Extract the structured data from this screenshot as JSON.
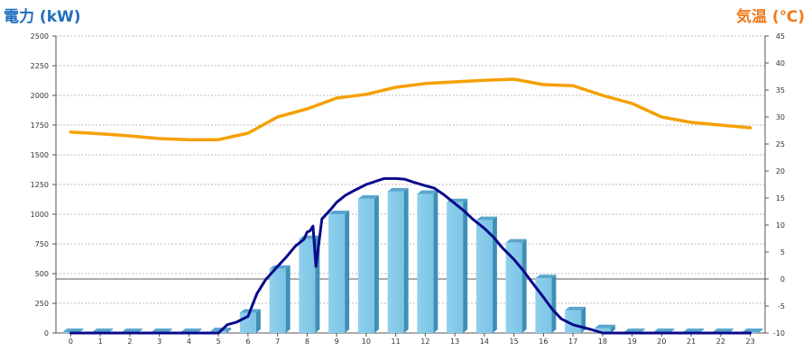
{
  "chart_data": {
    "type": "bar",
    "title": "",
    "ylabel_left": "電力 (kW)",
    "ylabel_right": "気温 (℃)",
    "categories": [
      "0",
      "1",
      "2",
      "3",
      "4",
      "5",
      "6",
      "7",
      "8",
      "9",
      "10",
      "11",
      "12",
      "13",
      "14",
      "15",
      "16",
      "17",
      "18",
      "19",
      "20",
      "21",
      "22",
      "23"
    ],
    "ylim_left": [
      0,
      2500
    ],
    "yticks_left": [
      0,
      250,
      500,
      750,
      1000,
      1250,
      1500,
      1750,
      2000,
      2250,
      2500
    ],
    "ylim_right": [
      -10,
      45
    ],
    "yticks_right": [
      -10,
      -5,
      0,
      5,
      10,
      15,
      20,
      25,
      30,
      35,
      40,
      45
    ],
    "grid": true,
    "series": [
      {
        "kind": "bar",
        "axis": "left",
        "values": [
          8,
          8,
          8,
          8,
          8,
          15,
          170,
          540,
          790,
          1000,
          1130,
          1190,
          1170,
          1100,
          950,
          760,
          460,
          190,
          40,
          8,
          8,
          8,
          8,
          8
        ]
      },
      {
        "kind": "line",
        "axis": "right",
        "color": "#f5a000",
        "x": [
          0,
          1,
          2,
          3,
          4,
          5,
          6,
          7,
          8,
          9,
          10,
          11,
          12,
          13,
          14,
          15,
          16,
          17,
          18,
          19,
          20,
          21,
          22,
          23
        ],
        "values": [
          27.2,
          26.9,
          26.5,
          26.0,
          25.8,
          25.8,
          27.0,
          30.0,
          31.5,
          33.5,
          34.2,
          35.5,
          36.2,
          36.5,
          36.8,
          37.0,
          36.0,
          35.8,
          34.0,
          32.5,
          30.0,
          29.0,
          28.5,
          28.0
        ]
      },
      {
        "kind": "line",
        "axis": "left",
        "color": "#0a0a8a",
        "x": [
          0,
          1,
          2,
          3,
          4,
          5,
          5.3,
          5.6,
          6,
          6.3,
          6.6,
          7,
          7.3,
          7.6,
          7.9,
          8,
          8.1,
          8.2,
          8.3,
          8.5,
          8.8,
          9,
          9.3,
          9.6,
          10,
          10.3,
          10.6,
          11,
          11.3,
          11.6,
          12,
          12.3,
          12.6,
          13,
          13.3,
          13.6,
          14,
          14.3,
          14.6,
          15,
          15.3,
          15.6,
          16,
          16.3,
          16.6,
          17,
          17.3,
          17.6,
          18,
          19,
          20,
          21,
          22,
          23
        ],
        "values": [
          0,
          0,
          0,
          0,
          0,
          0,
          70,
          90,
          140,
          330,
          450,
          560,
          640,
          730,
          790,
          850,
          860,
          900,
          560,
          960,
          1040,
          1100,
          1160,
          1200,
          1250,
          1275,
          1300,
          1300,
          1295,
          1270,
          1240,
          1220,
          1170,
          1090,
          1030,
          960,
          880,
          810,
          720,
          620,
          530,
          430,
          300,
          200,
          120,
          70,
          50,
          30,
          0,
          0,
          0,
          0,
          0,
          0
        ]
      }
    ]
  }
}
